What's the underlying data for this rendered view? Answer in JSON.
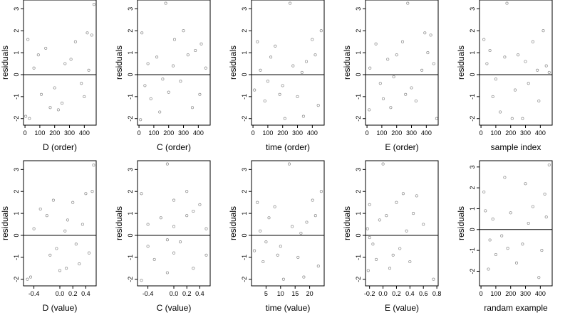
{
  "figure": {
    "background": "#ffffff",
    "point_color": "#000000",
    "point_opacity": 0.45,
    "zero_line_color": "#000000"
  },
  "chart_data": [
    {
      "type": "scatter",
      "xlabel": "D (order)",
      "ylabel": "residuals",
      "xlim": [
        -10,
        480
      ],
      "ylim": [
        -2.3,
        3.4
      ],
      "xticks": [
        0,
        100,
        200,
        300,
        400
      ],
      "xtick_labels": [
        "0",
        "100",
        "200",
        "300",
        "400"
      ],
      "yticks": [
        -2,
        -1,
        0,
        1,
        2,
        3
      ],
      "ytick_labels": [
        "-2",
        "-1",
        "0",
        "1",
        "2",
        "3"
      ],
      "reference_line_y": 0,
      "points": [
        [
          465,
          3.2
        ],
        [
          5,
          -1.9
        ],
        [
          30,
          -2.0
        ],
        [
          170,
          -1.5
        ],
        [
          225,
          -1.6
        ],
        [
          20,
          1.6
        ],
        [
          340,
          1.5
        ],
        [
          420,
          1.9
        ],
        [
          450,
          1.8
        ],
        [
          140,
          1.2
        ],
        [
          250,
          -1.3
        ],
        [
          400,
          -1.0
        ],
        [
          90,
          0.9
        ],
        [
          310,
          0.7
        ],
        [
          200,
          -0.6
        ],
        [
          60,
          0.3
        ],
        [
          380,
          -0.4
        ],
        [
          110,
          -0.9
        ],
        [
          270,
          0.5
        ],
        [
          430,
          0.2
        ]
      ]
    },
    {
      "type": "scatter",
      "xlabel": "C (order)",
      "ylabel": "residuals",
      "xlim": [
        -10,
        480
      ],
      "ylim": [
        -2.3,
        3.4
      ],
      "xticks": [
        0,
        100,
        200,
        300,
        400
      ],
      "xtick_labels": [
        "0",
        "100",
        "200",
        "300",
        "400"
      ],
      "yticks": [
        -2,
        -1,
        0,
        1,
        2,
        3
      ],
      "ytick_labels": [
        "-2",
        "-1",
        "0",
        "1",
        "2",
        "3"
      ],
      "reference_line_y": 0,
      "points": [
        [
          180,
          3.25
        ],
        [
          10,
          -2.05
        ],
        [
          300,
          2.0
        ],
        [
          140,
          -1.7
        ],
        [
          360,
          -1.5
        ],
        [
          20,
          1.9
        ],
        [
          240,
          1.6
        ],
        [
          420,
          1.4
        ],
        [
          80,
          -1.1
        ],
        [
          330,
          0.9
        ],
        [
          200,
          -0.8
        ],
        [
          60,
          0.5
        ],
        [
          280,
          -0.3
        ],
        [
          410,
          -0.9
        ],
        [
          120,
          0.8
        ],
        [
          450,
          0.3
        ],
        [
          160,
          -0.2
        ],
        [
          230,
          0.4
        ],
        [
          380,
          1.1
        ],
        [
          40,
          -0.5
        ]
      ]
    },
    {
      "type": "scatter",
      "xlabel": "time (order)",
      "ylabel": "residuals",
      "xlim": [
        -10,
        480
      ],
      "ylim": [
        -2.3,
        3.4
      ],
      "xticks": [
        0,
        100,
        200,
        300,
        400
      ],
      "xtick_labels": [
        "0",
        "100",
        "200",
        "300",
        "400"
      ],
      "yticks": [
        -2,
        -1,
        0,
        1,
        2,
        3
      ],
      "ytick_labels": [
        "-2",
        "-1",
        "0",
        "1",
        "2",
        "3"
      ],
      "reference_line_y": 0,
      "points": [
        [
          250,
          3.25
        ],
        [
          215,
          -2.0
        ],
        [
          340,
          -1.9
        ],
        [
          460,
          2.0
        ],
        [
          30,
          1.5
        ],
        [
          150,
          1.3
        ],
        [
          400,
          1.6
        ],
        [
          80,
          -1.2
        ],
        [
          300,
          -1.0
        ],
        [
          440,
          -1.4
        ],
        [
          120,
          0.8
        ],
        [
          360,
          0.6
        ],
        [
          200,
          -0.5
        ],
        [
          50,
          0.2
        ],
        [
          270,
          0.4
        ],
        [
          180,
          -0.9
        ],
        [
          420,
          0.9
        ],
        [
          100,
          -0.3
        ],
        [
          330,
          0.1
        ],
        [
          10,
          -0.7
        ]
      ]
    },
    {
      "type": "scatter",
      "xlabel": "E (order)",
      "ylabel": "residuals",
      "xlim": [
        -10,
        480
      ],
      "ylim": [
        -2.3,
        3.4
      ],
      "xticks": [
        0,
        100,
        200,
        300,
        400
      ],
      "xtick_labels": [
        "0",
        "100",
        "200",
        "300",
        "400"
      ],
      "yticks": [
        -2,
        -1,
        0,
        1,
        2,
        3
      ],
      "ytick_labels": [
        "-2",
        "-1",
        "0",
        "1",
        "2",
        "3"
      ],
      "reference_line_y": 0,
      "points": [
        [
          275,
          3.25
        ],
        [
          470,
          -2.0
        ],
        [
          15,
          -1.6
        ],
        [
          160,
          -1.5
        ],
        [
          390,
          1.9
        ],
        [
          430,
          1.8
        ],
        [
          60,
          1.4
        ],
        [
          240,
          1.5
        ],
        [
          110,
          -1.1
        ],
        [
          330,
          -1.2
        ],
        [
          200,
          0.9
        ],
        [
          450,
          0.5
        ],
        [
          20,
          0.3
        ],
        [
          300,
          -0.6
        ],
        [
          140,
          0.7
        ],
        [
          370,
          0.2
        ],
        [
          90,
          -0.4
        ],
        [
          260,
          -0.9
        ],
        [
          410,
          1.0
        ],
        [
          180,
          -0.1
        ]
      ]
    },
    {
      "type": "scatter",
      "xlabel": "sample index",
      "ylabel": "residuals",
      "xlim": [
        -10,
        480
      ],
      "ylim": [
        -2.3,
        3.4
      ],
      "xticks": [
        0,
        100,
        200,
        300,
        400
      ],
      "xtick_labels": [
        "0",
        "100",
        "200",
        "300",
        "400"
      ],
      "yticks": [
        -2,
        -1,
        0,
        1,
        2,
        3
      ],
      "ytick_labels": [
        "-2",
        "-1",
        "0",
        "1",
        "2",
        "3"
      ],
      "reference_line_y": 0,
      "points": [
        [
          175,
          3.25
        ],
        [
          210,
          -2.0
        ],
        [
          280,
          -2.0
        ],
        [
          130,
          -1.7
        ],
        [
          420,
          2.0
        ],
        [
          20,
          1.6
        ],
        [
          350,
          1.5
        ],
        [
          460,
          0.1
        ],
        [
          80,
          -1.0
        ],
        [
          250,
          0.9
        ],
        [
          390,
          -1.2
        ],
        [
          40,
          0.5
        ],
        [
          160,
          0.8
        ],
        [
          320,
          -0.4
        ],
        [
          440,
          0.4
        ],
        [
          100,
          -0.2
        ],
        [
          230,
          -0.7
        ],
        [
          300,
          0.6
        ],
        [
          60,
          1.1
        ],
        [
          380,
          0.2
        ]
      ]
    },
    {
      "type": "scatter",
      "xlabel": "D (value)",
      "ylabel": "residuals",
      "xlim": [
        -0.56,
        0.56
      ],
      "ylim": [
        -2.3,
        3.4
      ],
      "xticks": [
        -0.4,
        0.0,
        0.2,
        0.4
      ],
      "xtick_labels": [
        "-0.4",
        "0.0",
        "0.2",
        "0.4"
      ],
      "yticks": [
        -2,
        -1,
        0,
        1,
        2,
        3
      ],
      "ytick_labels": [
        "-2",
        "-1",
        "0",
        "1",
        "2",
        "3"
      ],
      "reference_line_y": 0,
      "points": [
        [
          0.52,
          3.2
        ],
        [
          -0.5,
          -2.0
        ],
        [
          -0.45,
          -1.9
        ],
        [
          0.0,
          -1.6
        ],
        [
          0.1,
          -1.5
        ],
        [
          -0.1,
          1.6
        ],
        [
          0.2,
          1.5
        ],
        [
          0.4,
          1.9
        ],
        [
          0.5,
          2.0
        ],
        [
          -0.3,
          1.2
        ],
        [
          0.3,
          -1.3
        ],
        [
          0.45,
          -0.8
        ],
        [
          -0.2,
          0.9
        ],
        [
          0.12,
          0.7
        ],
        [
          -0.05,
          -0.6
        ],
        [
          -0.4,
          0.3
        ],
        [
          0.25,
          -0.4
        ],
        [
          -0.15,
          -0.9
        ],
        [
          0.08,
          0.2
        ],
        [
          0.35,
          0.5
        ]
      ]
    },
    {
      "type": "scatter",
      "xlabel": "C (value)",
      "ylabel": "residuals",
      "xlim": [
        -0.56,
        0.56
      ],
      "ylim": [
        -2.3,
        3.4
      ],
      "xticks": [
        -0.4,
        0.0,
        0.2,
        0.4
      ],
      "xtick_labels": [
        "-0.4",
        "0.0",
        "0.2",
        "0.4"
      ],
      "yticks": [
        -2,
        -1,
        0,
        1,
        2,
        3
      ],
      "ytick_labels": [
        "-2",
        "-1",
        "0",
        "1",
        "2",
        "3"
      ],
      "reference_line_y": 0,
      "points": [
        [
          -0.1,
          3.25
        ],
        [
          -0.5,
          -2.05
        ],
        [
          0.2,
          2.0
        ],
        [
          -0.1,
          -1.7
        ],
        [
          0.3,
          -1.5
        ],
        [
          -0.5,
          1.9
        ],
        [
          0.0,
          1.6
        ],
        [
          0.4,
          1.4
        ],
        [
          -0.3,
          -1.1
        ],
        [
          0.2,
          0.9
        ],
        [
          0.0,
          -0.8
        ],
        [
          -0.4,
          0.5
        ],
        [
          0.1,
          -0.3
        ],
        [
          0.5,
          -0.9
        ],
        [
          -0.2,
          0.8
        ],
        [
          0.5,
          0.3
        ],
        [
          -0.1,
          -0.2
        ],
        [
          0.0,
          0.4
        ],
        [
          0.3,
          1.1
        ],
        [
          -0.4,
          -0.5
        ]
      ]
    },
    {
      "type": "scatter",
      "xlabel": "time (value)",
      "ylabel": "residuals",
      "xlim": [
        0,
        25
      ],
      "ylim": [
        -2.3,
        3.4
      ],
      "xticks": [
        5,
        10,
        15,
        20
      ],
      "xtick_labels": [
        "5",
        "10",
        "15",
        "20"
      ],
      "yticks": [
        -2,
        -1,
        0,
        1,
        2,
        3
      ],
      "ytick_labels": [
        "-2",
        "-1",
        "0",
        "1",
        "2",
        "3"
      ],
      "reference_line_y": 0,
      "points": [
        [
          13,
          3.25
        ],
        [
          11,
          -2.0
        ],
        [
          18,
          -1.9
        ],
        [
          24,
          2.0
        ],
        [
          2,
          1.5
        ],
        [
          8,
          1.3
        ],
        [
          21,
          1.6
        ],
        [
          4,
          -1.2
        ],
        [
          16,
          -1.0
        ],
        [
          23,
          -1.4
        ],
        [
          6,
          0.8
        ],
        [
          19,
          0.6
        ],
        [
          10,
          -0.5
        ],
        [
          3,
          0.2
        ],
        [
          14,
          0.4
        ],
        [
          9,
          -0.9
        ],
        [
          22,
          0.9
        ],
        [
          5,
          -0.3
        ],
        [
          17,
          0.1
        ],
        [
          1,
          -0.7
        ]
      ]
    },
    {
      "type": "scatter",
      "xlabel": "E (value)",
      "ylabel": "residuals",
      "xlim": [
        -0.26,
        0.82
      ],
      "ylim": [
        -2.3,
        3.4
      ],
      "xticks": [
        -0.2,
        0.0,
        0.2,
        0.4,
        0.6,
        0.8
      ],
      "xtick_labels": [
        "-0.2",
        "0.0",
        "0.2",
        "0.4",
        "0.6",
        "0.8"
      ],
      "yticks": [
        -2,
        -1,
        0,
        1,
        2,
        3
      ],
      "ytick_labels": [
        "-2",
        "-1",
        "0",
        "1",
        "2",
        "3"
      ],
      "reference_line_y": 0,
      "points": [
        [
          0.0,
          3.25
        ],
        [
          0.75,
          -2.0
        ],
        [
          -0.22,
          -1.6
        ],
        [
          0.1,
          -1.5
        ],
        [
          0.3,
          1.9
        ],
        [
          0.5,
          1.8
        ],
        [
          -0.2,
          1.4
        ],
        [
          0.2,
          1.5
        ],
        [
          -0.1,
          -1.1
        ],
        [
          0.4,
          -1.2
        ],
        [
          0.05,
          0.9
        ],
        [
          0.6,
          0.5
        ],
        [
          -0.23,
          0.3
        ],
        [
          0.25,
          -0.6
        ],
        [
          -0.05,
          0.7
        ],
        [
          0.35,
          0.2
        ],
        [
          -0.15,
          -0.4
        ],
        [
          0.15,
          -0.9
        ],
        [
          0.45,
          1.0
        ],
        [
          -0.2,
          -0.1
        ]
      ]
    },
    {
      "type": "scatter",
      "xlabel": "randam example",
      "ylabel": "residuals",
      "xlim": [
        -10,
        480
      ],
      "ylim": [
        -2.7,
        3.3
      ],
      "xticks": [
        0,
        100,
        200,
        300,
        400
      ],
      "xtick_labels": [
        "0",
        "100",
        "200",
        "300",
        "400"
      ],
      "yticks": [
        -2,
        -1,
        0,
        1,
        2,
        3
      ],
      "ytick_labels": [
        "-2",
        "-1",
        "0",
        "1",
        "2",
        "3"
      ],
      "reference_line_y": 0,
      "points": [
        [
          460,
          3.1
        ],
        [
          50,
          -1.9
        ],
        [
          390,
          -2.3
        ],
        [
          160,
          2.5
        ],
        [
          300,
          2.2
        ],
        [
          20,
          1.8
        ],
        [
          240,
          -1.6
        ],
        [
          430,
          1.7
        ],
        [
          100,
          -1.2
        ],
        [
          350,
          1.1
        ],
        [
          200,
          0.8
        ],
        [
          80,
          0.5
        ],
        [
          280,
          -0.7
        ],
        [
          410,
          -1.0
        ],
        [
          140,
          -0.3
        ],
        [
          30,
          0.9
        ],
        [
          320,
          0.3
        ],
        [
          180,
          -0.9
        ],
        [
          440,
          0.6
        ],
        [
          60,
          -0.5
        ]
      ]
    }
  ]
}
